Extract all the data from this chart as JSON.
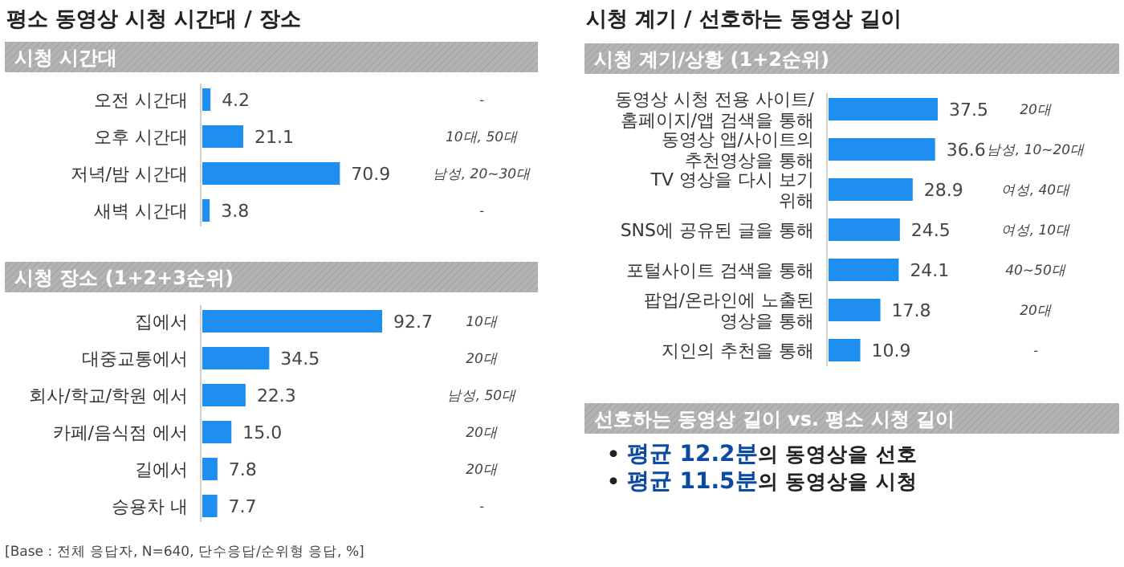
{
  "chart_data": [
    {
      "type": "bar",
      "orientation": "horizontal",
      "title": "평소 동영상 시청 시간대 / 장소",
      "subtitle": "시청 시간대",
      "categories": [
        "오전 시간대",
        "오후 시간대",
        "저녁/밤 시간대",
        "새벽 시간대"
      ],
      "values": [
        4.2,
        21.1,
        70.9,
        3.8
      ],
      "color": "#1e8ff0",
      "data_labels": true,
      "annotations": [
        "-",
        "10대, 50대",
        "남성, 20~30대",
        "-"
      ]
    },
    {
      "type": "bar",
      "orientation": "horizontal",
      "title": "시청 장소 (1+2+3순위)",
      "categories": [
        "집에서",
        "대중교통에서",
        "회사/학교/학원 에서",
        "카페/음식점 에서",
        "길에서",
        "승용차 내"
      ],
      "values": [
        92.7,
        34.5,
        22.3,
        15.0,
        7.8,
        7.7
      ],
      "value_labels": [
        "92.7",
        "34.5",
        "22.3",
        "15.0",
        "7.8",
        "7.7"
      ],
      "color": "#1e8ff0",
      "annotations": [
        "10대",
        "20대",
        "남성, 50대",
        "20대",
        "20대",
        "-",
        "[Base : 전체 응답자, N=640, 단수응답/순위형 응답, %]"
      ]
    },
    {
      "type": "bar",
      "orientation": "horizontal",
      "title": "시청 계기 / 선호하는 동영상 길이",
      "subtitle": "시청 계기/상황 (1+2순위)",
      "categories": [
        "동영상 시청 전용 사이트/홈페이지/앱 검색을 통해",
        "동영상 앱/사이트의 추천영상을 통해",
        "TV 영상을 다시 보기 위해",
        "SNS에 공유된 글을 통해",
        "포털사이트 검색을 통해",
        "팝업/온라인에 노출된 영상을 통해",
        "지인의 추천을 통해"
      ],
      "values": [
        37.5,
        36.6,
        28.9,
        24.5,
        24.1,
        17.8,
        10.9
      ],
      "color": "#1e8ff0",
      "data_labels": true,
      "annotations": [
        "20대",
        "남성, 10~20대",
        "여성, 40대",
        "여성, 10대",
        "40~50대",
        "20대",
        "-"
      ]
    },
    {
      "type": "other",
      "title": "선호하는 동영상 길이 vs. 평소 시청 길이",
      "annotations": [
        "• **평균 12.2분**의 동영상을 선호",
        "• **평균 11.5분**의 동영상을 시청"
      ]
    }
  ]
}
